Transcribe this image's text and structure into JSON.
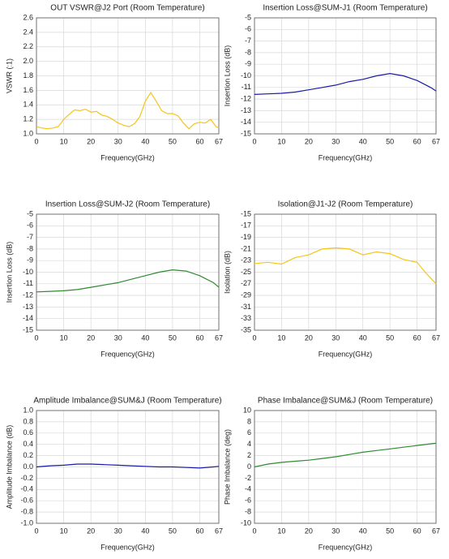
{
  "chart_data": [
    {
      "type": "line",
      "title": "OUT VSWR@J2 Port (Room Temperature)",
      "x_label": "Frequency(GHz)",
      "y_label": "VSWR (:1)",
      "xlim": [
        0,
        67
      ],
      "xticks": [
        0,
        10,
        20,
        30,
        40,
        50,
        60,
        67
      ],
      "ylim": [
        1,
        2.6
      ],
      "yticks": [
        {
          "value": 1,
          "label": "1.0"
        },
        1.2,
        1.4,
        1.6,
        1.8,
        {
          "value": 2,
          "label": "2.0"
        },
        2.2,
        2.4,
        2.6
      ],
      "grid": true,
      "x": [
        0,
        2,
        4,
        6,
        8,
        10,
        12,
        14,
        16,
        18,
        20,
        22,
        24,
        26,
        28,
        30,
        32,
        34,
        36,
        38,
        40,
        42,
        44,
        46,
        48,
        50,
        52,
        54,
        56,
        58,
        60,
        62,
        64,
        66,
        67
      ],
      "series": [
        {
          "color": "#f5c518",
          "values": [
            1.1,
            1.08,
            1.07,
            1.08,
            1.1,
            1.2,
            1.27,
            1.33,
            1.32,
            1.34,
            1.3,
            1.31,
            1.26,
            1.24,
            1.2,
            1.15,
            1.12,
            1.1,
            1.14,
            1.24,
            1.45,
            1.57,
            1.45,
            1.32,
            1.28,
            1.28,
            1.25,
            1.15,
            1.07,
            1.14,
            1.16,
            1.15,
            1.2,
            1.1,
            1.08
          ]
        }
      ]
    },
    {
      "type": "line",
      "title": "Insertion Loss@SUM-J1 (Room Temperature)",
      "x_label": "Frequency(GHz)",
      "y_label": "Insertion Loss (dB)",
      "xlim": [
        0,
        67
      ],
      "xticks": [
        0,
        10,
        20,
        30,
        40,
        50,
        60,
        67
      ],
      "ylim": [
        -15,
        -5
      ],
      "yticks": [
        -15,
        -14,
        -13,
        -12,
        -11,
        -10,
        -9,
        -8,
        -7,
        -6,
        -5
      ],
      "grid": true,
      "x": [
        0,
        5,
        10,
        15,
        20,
        25,
        30,
        35,
        40,
        45,
        50,
        55,
        60,
        65,
        67
      ],
      "series": [
        {
          "color": "#1a1aa8",
          "values": [
            -11.6,
            -11.55,
            -11.5,
            -11.4,
            -11.2,
            -11.0,
            -10.8,
            -10.5,
            -10.3,
            -10.0,
            -9.8,
            -10.0,
            -10.4,
            -11.0,
            -11.3
          ]
        }
      ]
    },
    {
      "type": "line",
      "title": "Insertion Loss@SUM-J2 (Room Temperature)",
      "x_label": "Frequency(GHz)",
      "y_label": "Insertion Loss (dB)",
      "xlim": [
        0,
        67
      ],
      "xticks": [
        0,
        10,
        20,
        30,
        40,
        50,
        60,
        67
      ],
      "ylim": [
        -15,
        -5
      ],
      "yticks": [
        -15,
        -14,
        -13,
        -12,
        -11,
        -10,
        -9,
        -8,
        -7,
        -6,
        -5
      ],
      "grid": true,
      "x": [
        0,
        5,
        10,
        15,
        20,
        25,
        30,
        35,
        40,
        45,
        50,
        55,
        60,
        65,
        67
      ],
      "series": [
        {
          "color": "#2e8b2e",
          "values": [
            -11.7,
            -11.65,
            -11.6,
            -11.5,
            -11.3,
            -11.1,
            -10.9,
            -10.6,
            -10.3,
            -10.0,
            -9.8,
            -9.9,
            -10.3,
            -10.9,
            -11.3
          ]
        }
      ]
    },
    {
      "type": "line",
      "title": "Isolation@J1-J2 (Room Temperature)",
      "x_label": "Frequency(GHz)",
      "y_label": "Isolation (dB)",
      "xlim": [
        0,
        67
      ],
      "xticks": [
        0,
        10,
        20,
        30,
        40,
        50,
        60,
        67
      ],
      "ylim": [
        -35,
        -15
      ],
      "yticks": [
        -35,
        -33,
        -31,
        -29,
        -27,
        -25,
        -23,
        -21,
        -19,
        -17,
        -15
      ],
      "grid": true,
      "x": [
        0,
        5,
        10,
        15,
        20,
        25,
        30,
        35,
        40,
        45,
        50,
        55,
        60,
        63,
        67
      ],
      "series": [
        {
          "color": "#f5c518",
          "values": [
            -23.5,
            -23.3,
            -23.6,
            -22.5,
            -22.0,
            -21.0,
            -20.8,
            -21.0,
            -22.0,
            -21.5,
            -21.8,
            -22.8,
            -23.3,
            -25.0,
            -27.0
          ]
        }
      ]
    },
    {
      "type": "line",
      "title": "Amplitude Imbalance@SUM&J (Room Temperature)",
      "x_label": "Frequency(GHz)",
      "y_label": "Amplitude Imbalance (dB)",
      "xlim": [
        0,
        67
      ],
      "xticks": [
        0,
        10,
        20,
        30,
        40,
        50,
        60,
        67
      ],
      "ylim": [
        -1,
        1
      ],
      "yticks": [
        {
          "value": -1,
          "label": "-1.0"
        },
        -0.8,
        -0.6,
        -0.4,
        -0.2,
        {
          "value": 0,
          "label": "0.0"
        },
        0.2,
        0.4,
        0.6,
        0.8,
        {
          "value": 1,
          "label": "1.0"
        }
      ],
      "grid": true,
      "x": [
        0,
        5,
        10,
        15,
        20,
        25,
        30,
        35,
        40,
        45,
        50,
        55,
        60,
        65,
        67
      ],
      "series": [
        {
          "color": "#1a1aa8",
          "values": [
            0.0,
            0.02,
            0.03,
            0.05,
            0.05,
            0.04,
            0.03,
            0.02,
            0.01,
            0.0,
            0.0,
            -0.01,
            -0.02,
            0.0,
            0.01
          ]
        }
      ]
    },
    {
      "type": "line",
      "title": "Phase Imbalance@SUM&J (Room Temperature)",
      "x_label": "Frequency(GHz)",
      "y_label": "Phase Imbalance (deg)",
      "xlim": [
        0,
        67
      ],
      "xticks": [
        0,
        10,
        20,
        30,
        40,
        50,
        60,
        67
      ],
      "ylim": [
        -10,
        10
      ],
      "yticks": [
        -10,
        -8,
        -6,
        -4,
        -2,
        0,
        2,
        4,
        6,
        8,
        10
      ],
      "grid": true,
      "x": [
        0,
        5,
        10,
        15,
        20,
        25,
        30,
        35,
        40,
        45,
        50,
        55,
        60,
        65,
        67
      ],
      "series": [
        {
          "color": "#2e8b2e",
          "values": [
            0.0,
            0.5,
            0.8,
            1.0,
            1.2,
            1.5,
            1.8,
            2.2,
            2.6,
            2.9,
            3.2,
            3.5,
            3.8,
            4.1,
            4.2
          ]
        }
      ]
    }
  ]
}
